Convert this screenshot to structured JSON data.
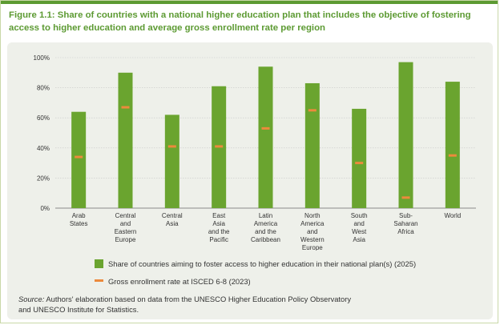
{
  "title": "Figure 1.1: Share of countries with a national higher education plan that includes the objective of fostering access to higher education and average gross enrollment rate per region",
  "colors": {
    "accent": "#5c9a32",
    "bar": "#6aa42f",
    "marker": "#ec8a3c",
    "panel": "#eef0ea"
  },
  "chart_data": {
    "type": "bar",
    "categories": [
      [
        "Arab",
        "States"
      ],
      [
        "Central",
        "and",
        "Eastern",
        "Europe"
      ],
      [
        "Central",
        "Asia"
      ],
      [
        "East",
        "Asia",
        "and the",
        "Pacific"
      ],
      [
        "Latin",
        "America",
        "and the",
        "Caribbean"
      ],
      [
        "North",
        "America",
        "and",
        "Western",
        "Europe"
      ],
      [
        "South",
        "and",
        "West",
        "Asia"
      ],
      [
        "Sub-",
        "Saharan",
        "Africa"
      ],
      [
        "World"
      ]
    ],
    "series": [
      {
        "name": "Share of countries aiming to foster access to higher education in their national plan(s) (2025)",
        "type": "bar",
        "values": [
          64,
          90,
          62,
          81,
          94,
          83,
          66,
          97,
          84
        ]
      },
      {
        "name": "Gross enrollment rate at ISCED 6-8 (2023)",
        "type": "marker",
        "values": [
          34,
          67,
          41,
          41,
          53,
          65,
          30,
          7,
          35
        ]
      }
    ],
    "ylim": [
      0,
      100
    ],
    "yticks": [
      "0%",
      "20%",
      "40%",
      "60%",
      "80%",
      "100%"
    ],
    "grid": true,
    "legend_position": "bottom"
  },
  "source": {
    "lead": "Source:",
    "text": " Authors' elaboration based on data from the UNESCO Higher Education Policy Observatory",
    "line2": "and UNESCO Institute for Statistics."
  }
}
